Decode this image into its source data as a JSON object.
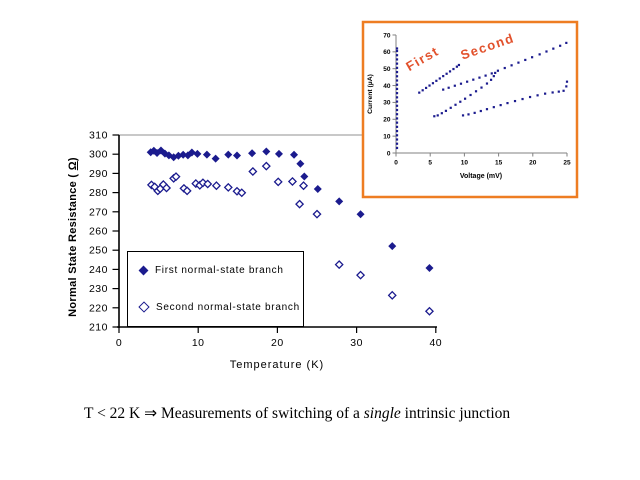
{
  "colors": {
    "series": "#1b1b8e",
    "gridline": "#919191",
    "axis": "#000000",
    "inset_axis": "#808080",
    "inset_border": "#ee7d22",
    "annotation": "#e2512c",
    "background": "#ffffff"
  },
  "chart_data": {
    "main": {
      "type": "scatter",
      "title": "",
      "xlabel": "Temperature (K)",
      "ylabel_pre": "Normal State Resistance ( ",
      "ylabel_omega": "Ω",
      "ylabel_post": ")",
      "xlim": [
        0,
        40
      ],
      "ylim": [
        210,
        310
      ],
      "xticks": [
        0,
        10,
        20,
        30,
        40
      ],
      "yticks": [
        210,
        220,
        230,
        240,
        250,
        260,
        270,
        280,
        290,
        300,
        310
      ],
      "grid": "top-border-only",
      "legend": {
        "position": "bottom-left-inside",
        "items": [
          {
            "label": "First normal-state branch",
            "marker": "filled-diamond"
          },
          {
            "label": "Second normal-state branch",
            "marker": "open-diamond"
          }
        ]
      },
      "series": [
        {
          "name": "First normal-state branch",
          "marker": "filled-diamond",
          "points": [
            [
              4.0,
              301.0
            ],
            [
              4.4,
              301.8
            ],
            [
              4.8,
              300.6
            ],
            [
              5.3,
              301.9
            ],
            [
              5.8,
              300.3
            ],
            [
              6.3,
              299.4
            ],
            [
              6.9,
              298.4
            ],
            [
              7.5,
              299.2
            ],
            [
              8.1,
              299.7
            ],
            [
              8.7,
              299.4
            ],
            [
              9.2,
              300.9
            ],
            [
              9.9,
              300.2
            ],
            [
              11.1,
              299.8
            ],
            [
              12.2,
              297.7
            ],
            [
              13.8,
              299.8
            ],
            [
              14.9,
              299.3
            ],
            [
              16.8,
              300.5
            ],
            [
              18.6,
              301.4
            ],
            [
              20.2,
              300.2
            ],
            [
              22.1,
              299.7
            ],
            [
              22.9,
              295.0
            ],
            [
              23.4,
              288.4
            ],
            [
              25.1,
              281.9
            ],
            [
              27.8,
              275.4
            ],
            [
              30.5,
              268.7
            ],
            [
              34.5,
              252.1
            ],
            [
              39.2,
              240.7
            ]
          ]
        },
        {
          "name": "Second normal-state branch",
          "marker": "open-diamond",
          "points": [
            [
              4.1,
              284.0
            ],
            [
              4.5,
              283.0
            ],
            [
              4.9,
              280.9
            ],
            [
              5.2,
              282.0
            ],
            [
              5.6,
              284.2
            ],
            [
              6.0,
              282.4
            ],
            [
              6.9,
              287.4
            ],
            [
              7.2,
              288.3
            ],
            [
              8.2,
              282.2
            ],
            [
              8.6,
              280.9
            ],
            [
              9.7,
              284.7
            ],
            [
              10.2,
              283.8
            ],
            [
              10.6,
              285.1
            ],
            [
              11.2,
              284.5
            ],
            [
              12.3,
              283.6
            ],
            [
              13.8,
              282.7
            ],
            [
              14.9,
              280.7
            ],
            [
              15.5,
              279.9
            ],
            [
              16.9,
              291.0
            ],
            [
              18.6,
              293.8
            ],
            [
              20.1,
              285.6
            ],
            [
              21.9,
              285.8
            ],
            [
              22.8,
              274.0
            ],
            [
              23.3,
              283.6
            ],
            [
              25.0,
              268.8
            ],
            [
              27.8,
              242.5
            ],
            [
              30.5,
              237.0
            ],
            [
              34.5,
              226.5
            ],
            [
              39.2,
              218.2
            ]
          ]
        }
      ]
    },
    "inset": {
      "type": "scatter",
      "title": "",
      "xlabel": "Voltage (mV)",
      "ylabel": "Current (µA)",
      "xlim": [
        0,
        25
      ],
      "ylim": [
        0,
        70
      ],
      "xticks": [
        0,
        5,
        10,
        15,
        20,
        25
      ],
      "yticks": [
        0,
        10,
        20,
        30,
        40,
        50,
        60,
        70
      ],
      "annotations": [
        {
          "text": "First",
          "rotation_deg": -30
        },
        {
          "text": "Second",
          "rotation_deg": -19
        }
      ],
      "series": [
        {
          "name": "supercurrent-branch",
          "points": [
            [
              0.15,
              3
            ],
            [
              0.15,
              5.5
            ],
            [
              0.15,
              8
            ],
            [
              0.15,
              10.5
            ],
            [
              0.15,
              13
            ],
            [
              0.15,
              15.5
            ],
            [
              0.15,
              18
            ],
            [
              0.15,
              20.5
            ],
            [
              0.15,
              23
            ],
            [
              0.15,
              25.5
            ],
            [
              0.15,
              28
            ],
            [
              0.15,
              30.5
            ],
            [
              0.15,
              33
            ],
            [
              0.15,
              35.5
            ],
            [
              0.15,
              38
            ],
            [
              0.15,
              40.5
            ],
            [
              0.15,
              43
            ],
            [
              0.15,
              45.5
            ],
            [
              0.15,
              48
            ],
            [
              0.15,
              50.5
            ],
            [
              0.15,
              53
            ],
            [
              0.15,
              55.5
            ],
            [
              0.15,
              58
            ],
            [
              0.15,
              60.5
            ],
            [
              0.15,
              62
            ]
          ]
        },
        {
          "name": "first-branch-upper",
          "points": [
            [
              3.4,
              35.8
            ],
            [
              3.9,
              37.2
            ],
            [
              4.4,
              38.6
            ],
            [
              4.9,
              40.0
            ],
            [
              5.4,
              41.4
            ],
            [
              5.9,
              42.8
            ],
            [
              6.4,
              44.2
            ],
            [
              6.9,
              45.6
            ],
            [
              7.4,
              47.0
            ],
            [
              7.9,
              48.4
            ],
            [
              8.4,
              49.8
            ],
            [
              8.9,
              51.2
            ],
            [
              9.2,
              52.2
            ]
          ]
        },
        {
          "name": "first-branch-lower",
          "points": [
            [
              5.6,
              21.8
            ],
            [
              6.1,
              22.3
            ],
            [
              6.7,
              23.6
            ],
            [
              7.3,
              25.0
            ],
            [
              8.0,
              26.8
            ],
            [
              8.7,
              28.6
            ],
            [
              9.4,
              30.4
            ],
            [
              10.1,
              32.2
            ],
            [
              10.9,
              34.4
            ],
            [
              11.7,
              36.6
            ],
            [
              12.5,
              38.8
            ],
            [
              13.3,
              41.2
            ],
            [
              13.9,
              43.4
            ],
            [
              14.3,
              45.6
            ],
            [
              14.5,
              47.5
            ]
          ]
        },
        {
          "name": "second-branch-upper",
          "points": [
            [
              6.9,
              37.6
            ],
            [
              7.7,
              38.7
            ],
            [
              8.6,
              39.9
            ],
            [
              9.5,
              41.1
            ],
            [
              10.4,
              42.3
            ],
            [
              11.3,
              43.5
            ],
            [
              12.2,
              44.7
            ],
            [
              13.1,
              45.9
            ],
            [
              14.0,
              47.2
            ],
            [
              14.9,
              48.8
            ],
            [
              15.9,
              50.4
            ],
            [
              16.9,
              52.0
            ],
            [
              17.9,
              53.6
            ],
            [
              18.9,
              55.2
            ],
            [
              19.9,
              56.8
            ],
            [
              21.0,
              58.5
            ],
            [
              22.0,
              60.2
            ],
            [
              23.0,
              61.9
            ],
            [
              24.0,
              63.6
            ],
            [
              24.9,
              65.3
            ]
          ]
        },
        {
          "name": "second-branch-lower",
          "points": [
            [
              9.8,
              22.3
            ],
            [
              10.6,
              22.9
            ],
            [
              11.5,
              23.8
            ],
            [
              12.4,
              24.9
            ],
            [
              13.3,
              26.0
            ],
            [
              14.3,
              27.2
            ],
            [
              15.3,
              28.4
            ],
            [
              16.3,
              29.6
            ],
            [
              17.4,
              30.8
            ],
            [
              18.5,
              32.0
            ],
            [
              19.6,
              33.2
            ],
            [
              20.7,
              34.2
            ],
            [
              21.8,
              35.2
            ],
            [
              22.9,
              35.9
            ],
            [
              23.8,
              36.4
            ],
            [
              24.5,
              36.9
            ],
            [
              24.9,
              39.5
            ],
            [
              25.0,
              42.3
            ]
          ]
        }
      ]
    }
  },
  "caption": {
    "t_condition": "T < 22 K",
    "arrow": "⇒",
    "before_emphasis": "Measurements of switching of a",
    "emphasis": "single",
    "after_emphasis": "intrinsic junction"
  }
}
